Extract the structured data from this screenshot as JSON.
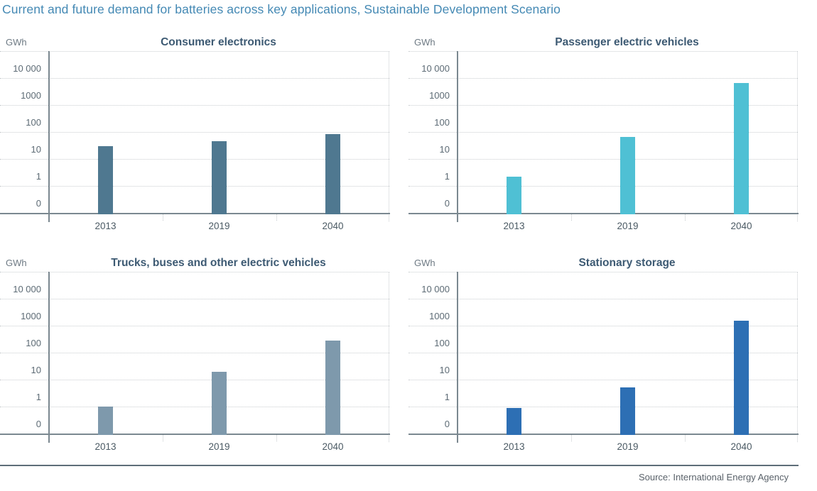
{
  "page_title": "Current and future demand for batteries across key applications, Sustainable Development Scenario",
  "source": "Source: International Energy Agency",
  "unit_label": "GWh",
  "colors": {
    "title_blue": "#4489b4",
    "panel_title": "#3d5a73",
    "axis_gray": "#7b8890",
    "consumer_electronics_bar": "#4f7890",
    "passenger_ev_bar": "#4fc0d4",
    "trucks_bar": "#7e99ac",
    "stationary_bar": "#2d6fb4"
  },
  "chart_data": [
    {
      "type": "bar",
      "title": "Consumer electronics",
      "ylabel": "GWh",
      "yscale": "log",
      "ylim": [
        0,
        100000
      ],
      "grid": "dotted-horizontal",
      "categories": [
        "2013",
        "2019",
        "2040"
      ],
      "values": [
        30,
        45,
        85
      ],
      "ytick_labels": [
        "0",
        "1",
        "10",
        "100",
        "1000",
        "10 000"
      ],
      "color": "#4f7890"
    },
    {
      "type": "bar",
      "title": "Passenger electric vehicles",
      "ylabel": "GWh",
      "yscale": "log",
      "ylim": [
        0,
        100000
      ],
      "grid": "dotted-horizontal",
      "categories": [
        "2013",
        "2019",
        "2040"
      ],
      "values": [
        2.2,
        65,
        6500
      ],
      "ytick_labels": [
        "0",
        "1",
        "10",
        "100",
        "1000",
        "10 000"
      ],
      "color": "#4fc0d4"
    },
    {
      "type": "bar",
      "title": "Trucks, buses and other electric vehicles",
      "ylabel": "GWh",
      "yscale": "log",
      "ylim": [
        0,
        100000
      ],
      "grid": "dotted-horizontal",
      "categories": [
        "2013",
        "2019",
        "2040"
      ],
      "values": [
        1,
        20,
        280
      ],
      "ytick_labels": [
        "0",
        "1",
        "10",
        "100",
        "1000",
        "10 000"
      ],
      "color": "#7e99ac"
    },
    {
      "type": "bar",
      "title": "Stationary storage",
      "ylabel": "GWh",
      "yscale": "log",
      "ylim": [
        0,
        100000
      ],
      "grid": "dotted-horizontal",
      "categories": [
        "2013",
        "2019",
        "2040"
      ],
      "values": [
        0.9,
        5,
        1500
      ],
      "ytick_labels": [
        "0",
        "1",
        "10",
        "100",
        "1000",
        "10 000"
      ],
      "color": "#2d6fb4"
    }
  ]
}
